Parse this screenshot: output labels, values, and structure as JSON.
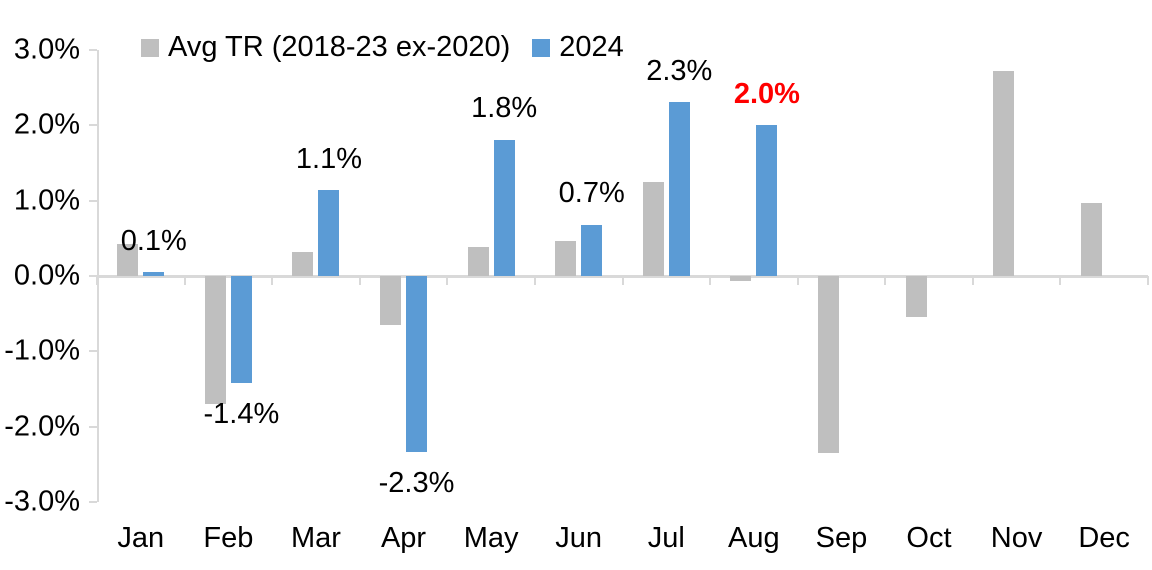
{
  "chart_data": {
    "type": "bar",
    "title": "",
    "xlabel": "",
    "ylabel": "",
    "categories": [
      "Jan",
      "Feb",
      "Mar",
      "Apr",
      "May",
      "Jun",
      "Jul",
      "Aug",
      "Sep",
      "Oct",
      "Nov",
      "Dec"
    ],
    "series": [
      {
        "name": "Avg TR (2018-23 ex-2020)",
        "color": "#bfbfbf",
        "values": [
          0.43,
          -1.7,
          0.32,
          -0.65,
          0.38,
          0.46,
          1.25,
          -0.07,
          -2.35,
          -0.55,
          2.72,
          0.97
        ]
      },
      {
        "name": "2024",
        "color": "#5b9bd5",
        "values": [
          0.05,
          -1.42,
          1.14,
          -2.33,
          1.81,
          0.68,
          2.31,
          2.0,
          null,
          null,
          null,
          null
        ]
      }
    ],
    "data_labels": [
      {
        "category": "Jan",
        "text": "0.1%",
        "color": "#000000",
        "bold": false
      },
      {
        "category": "Feb",
        "text": "-1.4%",
        "color": "#000000",
        "bold": false
      },
      {
        "category": "Mar",
        "text": "1.1%",
        "color": "#000000",
        "bold": false
      },
      {
        "category": "Apr",
        "text": "-2.3%",
        "color": "#000000",
        "bold": false
      },
      {
        "category": "May",
        "text": "1.8%",
        "color": "#000000",
        "bold": false
      },
      {
        "category": "Jun",
        "text": "0.7%",
        "color": "#000000",
        "bold": false
      },
      {
        "category": "Jul",
        "text": "2.3%",
        "color": "#000000",
        "bold": false
      },
      {
        "category": "Aug",
        "text": "2.0%",
        "color": "#ff0000",
        "bold": true
      }
    ],
    "y_ticks": [
      "3.0%",
      "2.0%",
      "1.0%",
      "0.0%",
      "-1.0%",
      "-2.0%",
      "-3.0%"
    ],
    "ylim": [
      -3.0,
      3.0
    ],
    "grid": false,
    "legend_position": "top-left",
    "axis_color": "#d9d9d9",
    "highlight_color": "#ff0000"
  }
}
